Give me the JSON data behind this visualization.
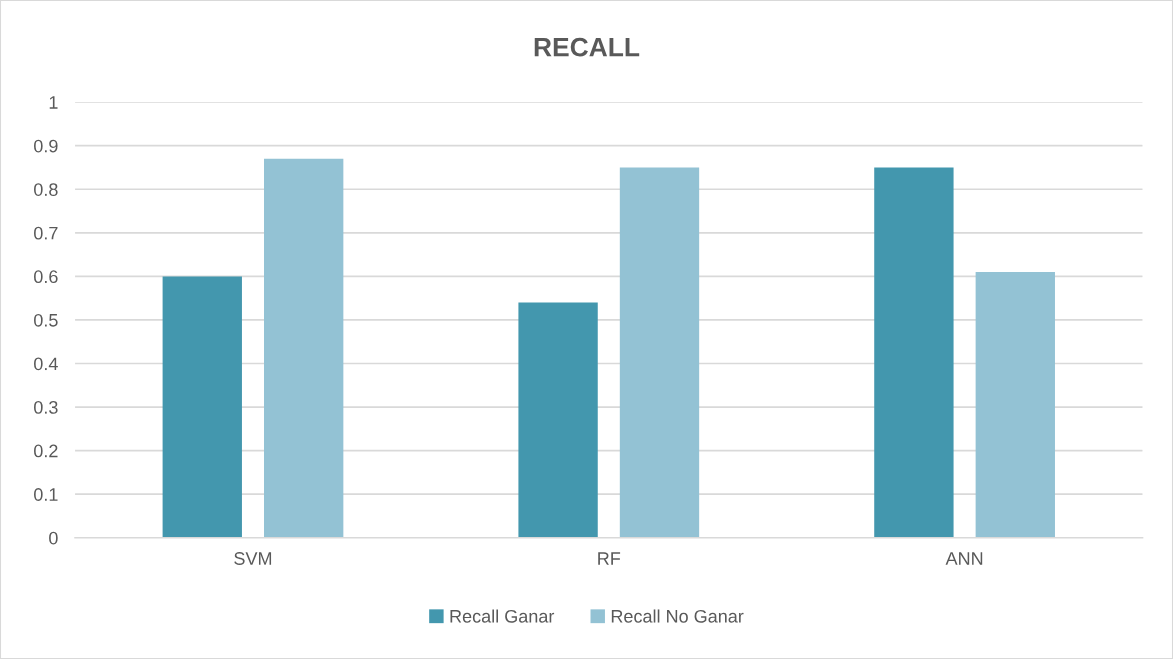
{
  "chart_data": {
    "type": "bar",
    "title": "RECALL",
    "categories": [
      "SVM",
      "RF",
      "ANN"
    ],
    "series": [
      {
        "name": "Recall Ganar",
        "color": "#4397ae",
        "values": [
          0.6,
          0.54,
          0.85
        ]
      },
      {
        "name": "Recall No Ganar",
        "color": "#93c2d4",
        "values": [
          0.87,
          0.85,
          0.61
        ]
      }
    ],
    "ylim": [
      0,
      1
    ],
    "yticks": [
      0,
      0.1,
      0.2,
      0.3,
      0.4,
      0.5,
      0.6,
      0.7,
      0.8,
      0.9,
      1
    ],
    "grid": "y",
    "legend": "bottom"
  }
}
